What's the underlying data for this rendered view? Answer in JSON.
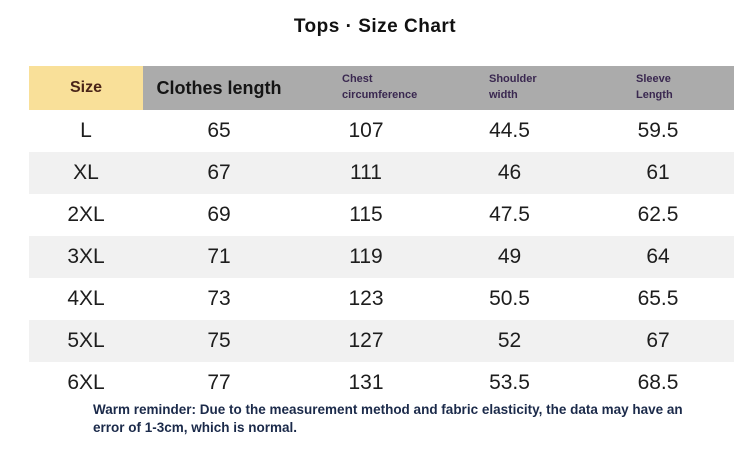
{
  "title": "Tops · Size Chart",
  "header": {
    "size": "Size",
    "clothes_length": "Clothes length",
    "chest_circumference": "Chest\ncircumference",
    "shoulder_width": "Shoulder\nwidth",
    "sleeve_length": "Sleeve\nLength"
  },
  "rows": [
    [
      "L",
      "65",
      "107",
      "44.5",
      "59.5"
    ],
    [
      "XL",
      "67",
      "111",
      "46",
      "61"
    ],
    [
      "2XL",
      "69",
      "115",
      "47.5",
      "62.5"
    ],
    [
      "3XL",
      "71",
      "119",
      "49",
      "64"
    ],
    [
      "4XL",
      "73",
      "123",
      "50.5",
      "65.5"
    ],
    [
      "5XL",
      "75",
      "127",
      "52",
      "67"
    ],
    [
      "6XL",
      "77",
      "131",
      "53.5",
      "68.5"
    ]
  ],
  "footer": {
    "note": "Warm reminder: Due to the measurement method and fabric elasticity, the data may have an error of 1-3cm, which is normal."
  },
  "colors": {
    "size_header_bg": "#F9E099",
    "header_bg": "#ABABAB",
    "stripe_bg": "#F1F1F1",
    "size_text": "#4A2418",
    "header_text_dark": "#151515",
    "header_text_purple": "#3A2850",
    "body_text": "#1D1D1D",
    "footer_text": "#1B2A4A",
    "title_text": "#111111"
  },
  "chart_data": {
    "type": "table",
    "title": "Tops · Size Chart",
    "columns": [
      "Size",
      "Clothes length",
      "Chest circumference",
      "Shoulder width",
      "Sleeve Length"
    ],
    "rows": [
      [
        "L",
        65,
        107,
        44.5,
        59.5
      ],
      [
        "XL",
        67,
        111,
        46,
        61
      ],
      [
        "2XL",
        69,
        115,
        47.5,
        62.5
      ],
      [
        "3XL",
        71,
        119,
        49,
        64
      ],
      [
        "4XL",
        73,
        123,
        50.5,
        65.5
      ],
      [
        "5XL",
        75,
        127,
        52,
        67
      ],
      [
        "6XL",
        77,
        131,
        53.5,
        68.5
      ]
    ],
    "unit": "cm",
    "note": "Warm reminder: Due to the measurement method and fabric elasticity, the data may have an error of 1-3cm, which is normal."
  }
}
